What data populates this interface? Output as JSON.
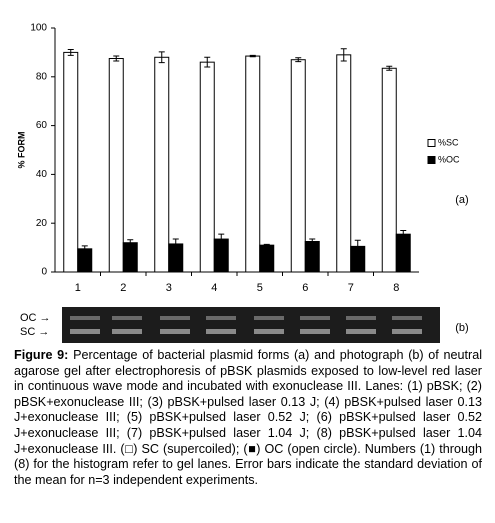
{
  "chart_data": {
    "type": "bar",
    "ylabel": "% FORM",
    "categories": [
      "1",
      "2",
      "3",
      "4",
      "5",
      "6",
      "7",
      "8"
    ],
    "series": [
      {
        "name": "%SC",
        "color": "#ffffff",
        "values": [
          90,
          87.5,
          88,
          86,
          88.5,
          87,
          89,
          83.5
        ],
        "errors": [
          1.2,
          1,
          2.2,
          2,
          0.3,
          0.8,
          2.5,
          0.8
        ]
      },
      {
        "name": "%OC",
        "color": "#000000",
        "values": [
          9.5,
          12,
          11.5,
          13.5,
          11,
          12.5,
          10.5,
          15.5
        ],
        "errors": [
          1.2,
          1.2,
          2,
          2,
          0.3,
          1,
          2.5,
          1.5
        ]
      }
    ],
    "ylim": [
      0,
      100
    ],
    "yticks": [
      0,
      20,
      40,
      60,
      80,
      100
    ],
    "grid": false,
    "legend": "right"
  },
  "panel_labels": [
    "(a)",
    "(b)"
  ],
  "gel_labels": [
    "OC →",
    "SC →"
  ],
  "caption_label": "Figure 9:",
  "caption": "Percentage of bacterial plasmid forms (a) and photograph (b) of neutral agarose gel after electrophoresis of pBSK plasmids exposed to low-level red laser in continuous wave mode and incubated with exonuclease III. Lanes: (1) pBSK; (2) pBSK+exonuclease III; (3) pBSK+pulsed laser 0.13 J; (4) pBSK+pulsed laser 0.13 J+exonuclease III; (5) pBSK+pulsed laser 0.52 J; (6) pBSK+pulsed laser 0.52 J+exonuclease III; (7) pBSK+pulsed laser 1.04 J; (8) pBSK+pulsed laser 1.04 J+exonuclease III. (□) SC (supercoiled); (■) OC (open circle). Numbers (1) through (8) for the histogram refer to gel lanes. Error bars indicate the standard deviation of the mean for n=3 independent experiments."
}
